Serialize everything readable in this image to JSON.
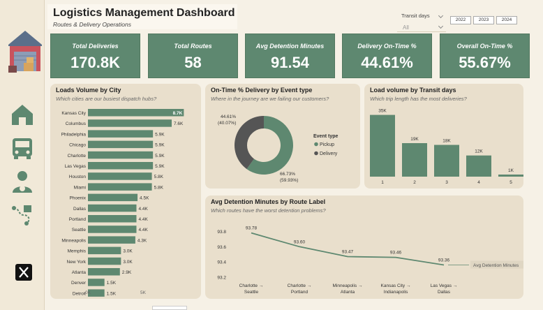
{
  "header": {
    "title": "Logistics Management Dashboard",
    "subtitle": "Routes & Delivery Operations"
  },
  "slicer": {
    "label": "Transit days",
    "value": "All"
  },
  "years": [
    "2022",
    "2023",
    "2024"
  ],
  "kpis": [
    {
      "label": "Total Deliveries",
      "value": "170.8K"
    },
    {
      "label": "Total Routes",
      "value": "58"
    },
    {
      "label": "Avg Detention Minutes",
      "value": "91.54"
    },
    {
      "label": "Delivery On-Time %",
      "value": "44.61%"
    },
    {
      "label": "Overall On-Time %",
      "value": "55.67%"
    }
  ],
  "sidebar_icons": [
    "warehouse-icon",
    "home-icon",
    "truck-icon",
    "driver-icon",
    "route-icon",
    "x-logo-icon"
  ],
  "colors": {
    "green": "#5e8870",
    "dark": "#555555",
    "panel": "#e9dfcc",
    "bg": "#f6f1e6"
  },
  "panels": {
    "city": {
      "title": "Loads Volume by City",
      "subtitle": "Which cities are our busiest dispatch hubs?"
    },
    "donut": {
      "title": "On-Time % Delivery by Event type",
      "subtitle": "Where in the journey are we failing our customers?"
    },
    "transit": {
      "title": "Load volume by Transit days",
      "subtitle": "Which trip length has the most deliveries?"
    },
    "detention": {
      "title": "Avg Detention Minutes by Route Label",
      "subtitle": "Which routes have the worst detention problems?"
    }
  },
  "chart_data": [
    {
      "type": "bar",
      "orientation": "horizontal",
      "title": "Loads Volume by City",
      "categories": [
        "Kansas City",
        "Columbus",
        "Philadelphia",
        "Chicago",
        "Charlotte",
        "Las Vegas",
        "Houston",
        "Miami",
        "Phoenix",
        "Dallas",
        "Portland",
        "Seattle",
        "Minneapolis",
        "Memphis",
        "New York",
        "Atlanta",
        "Denver",
        "Detroit"
      ],
      "values": [
        8.7,
        7.6,
        5.9,
        5.9,
        5.9,
        5.9,
        5.8,
        5.8,
        4.5,
        4.4,
        4.4,
        4.4,
        4.3,
        3.0,
        3.0,
        2.9,
        1.5,
        1.5
      ],
      "labels": [
        "8.7K",
        "7.6K",
        "5.9K",
        "5.9K",
        "5.9K",
        "5.9K",
        "5.8K",
        "5.8K",
        "4.5K",
        "4.4K",
        "4.4K",
        "4.4K",
        "4.3K",
        "3.0K",
        "3.0K",
        "2.9K",
        "1.5K",
        "1.5K"
      ],
      "x_ticks": [
        "0K",
        "5K"
      ],
      "xlim": [
        0,
        9.5
      ]
    },
    {
      "type": "pie",
      "donut": true,
      "title": "On-Time % Delivery by Event type",
      "legend_title": "Event type",
      "legend_position": "right",
      "slices": [
        {
          "name": "Pickup",
          "value": 66.73,
          "label": "66.73%",
          "pct": "(59.93%)",
          "color": "#5e8870"
        },
        {
          "name": "Delivery",
          "value": 44.61,
          "label": "44.61%",
          "pct": "(40.07%)",
          "color": "#555555"
        }
      ]
    },
    {
      "type": "bar",
      "title": "Load volume by Transit days",
      "categories": [
        "1",
        "2",
        "3",
        "4",
        "5"
      ],
      "values": [
        35,
        19,
        18,
        12,
        1
      ],
      "labels": [
        "35K",
        "19K",
        "18K",
        "12K",
        "1K"
      ],
      "ylim": [
        0,
        38
      ]
    },
    {
      "type": "line",
      "title": "Avg Detention Minutes by Route Label",
      "categories": [
        "Charlotte → Seattle",
        "Charlotte → Portland",
        "Minneapolis → Atlanta",
        "Kansas City → Indianapolis",
        "Las Vegas → Dallas"
      ],
      "series": [
        {
          "name": "Avg Detention Minutes",
          "values": [
            93.78,
            93.6,
            93.47,
            93.46,
            93.36
          ]
        }
      ],
      "value_labels": [
        "93.78",
        "93.60",
        "93.47",
        "93.46",
        "93.36"
      ],
      "y_ticks": [
        "93.8",
        "93.6",
        "93.4",
        "93.2"
      ],
      "ylim": [
        93.2,
        93.85
      ]
    }
  ]
}
